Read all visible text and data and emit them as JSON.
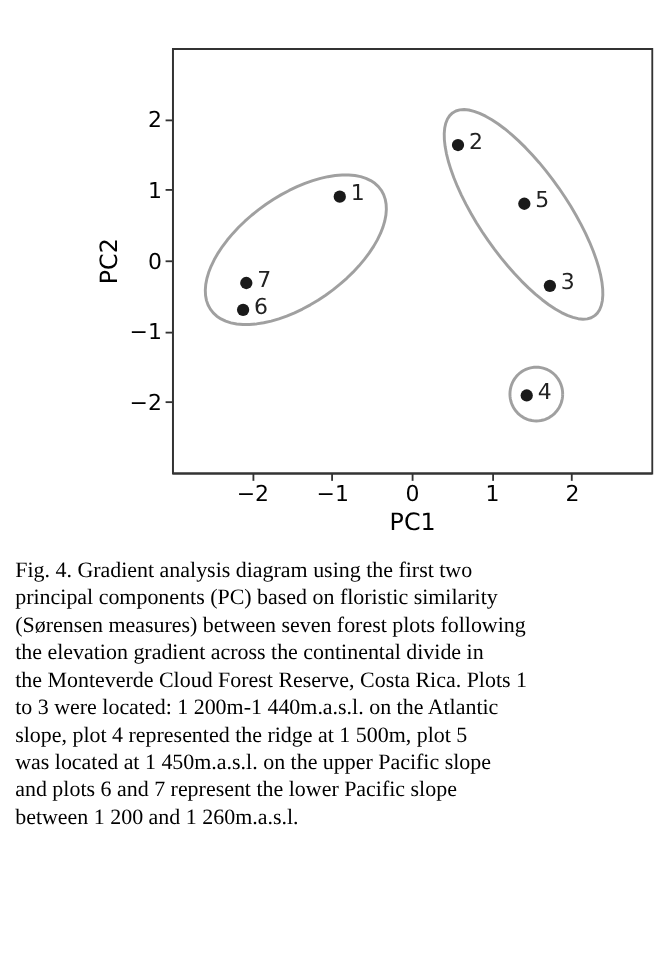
{
  "chart_data": {
    "type": "scatter",
    "xlabel": "PC1",
    "ylabel": "PC2",
    "xlim": [
      -3,
      3
    ],
    "xticks": [
      -2,
      -1,
      0,
      1,
      2
    ],
    "ylim": [
      -3,
      3
    ],
    "yticks": [
      -2,
      -1,
      0,
      1,
      2
    ],
    "grid": false,
    "legend": false,
    "marker": "circle",
    "series": [
      {
        "type": "scatter",
        "color": "#1a1a1a",
        "x": [
          -0.9,
          0.58,
          1.73,
          1.44,
          1.41,
          -2.11,
          -2.07
        ],
        "values": [
          0.9,
          1.63,
          -0.36,
          -1.91,
          0.8,
          -0.7,
          -0.32
        ]
      }
    ],
    "annotations": [
      {
        "text": "1",
        "x": -0.9,
        "y": 0.9
      },
      {
        "text": "2",
        "x": 0.58,
        "y": 1.63
      },
      {
        "text": "3",
        "x": 1.73,
        "y": -0.36
      },
      {
        "text": "4",
        "x": 1.44,
        "y": -1.91
      },
      {
        "text": "5",
        "x": 1.41,
        "y": 0.8
      },
      {
        "text": "6",
        "x": -2.11,
        "y": -0.7
      },
      {
        "text": "7",
        "x": -2.07,
        "y": -0.32
      },
      "Fig. 4. Gradient analysis diagram using the first two principal components (PC) based on floristic similarity (Sørensen measures) between seven forest plots following the elevation gradient across the continental divide in the Monteverde Cloud Forest Reserve, Costa Rica. Plots 1 to 3 were located: 1 200m-1 440m.a.s.l. on the Atlantic slope, plot 4 represented the ridge at 1 500m, plot 5 was located at 1 450m.a.s.l. on the upper Pacific slope and plots 6 and 7 represent the lower Pacific slope between 1 200 and 1 260m.a.s.l."
    ]
  }
}
